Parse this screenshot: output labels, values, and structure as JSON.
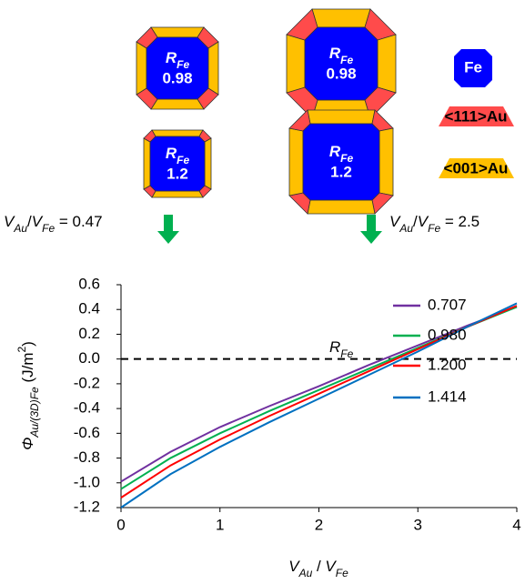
{
  "diagram": {
    "shapes": [
      {
        "symbol": "R",
        "sub": "Fe",
        "value": "0.98"
      },
      {
        "symbol": "R",
        "sub": "Fe",
        "value": "0.98"
      },
      {
        "symbol": "R",
        "sub": "Fe",
        "value": "1.2"
      },
      {
        "symbol": "R",
        "sub": "Fe",
        "value": "1.2"
      }
    ],
    "key": [
      "Fe",
      "<111>Au",
      "<001>Au"
    ],
    "annotations": [
      {
        "v1": "V",
        "s1": "Au",
        "slash": "/",
        "v2": "V",
        "s2": "Fe",
        "rest": " = 0.47"
      },
      {
        "v1": "V",
        "s1": "Au",
        "slash": "/",
        "v2": "V",
        "s2": "Fe",
        "rest": " = 2.5"
      }
    ]
  },
  "chart_data": {
    "type": "line",
    "x_label": {
      "v1": "V",
      "s1": "Au",
      "slash": " / ",
      "v2": "V",
      "s2": "Fe"
    },
    "y_label": {
      "sym": "Φ",
      "sub": "Au/(3D)Fe",
      "unit": " (J/m",
      "sup": "2",
      "close": ")"
    },
    "legend_title": {
      "symbol": "R",
      "sub": "Fe"
    },
    "x": [
      0,
      0.5,
      1,
      1.5,
      2,
      2.5,
      3,
      3.5,
      4
    ],
    "series": [
      {
        "name": "0.707",
        "color": "#7030a0",
        "values": [
          -0.99,
          -0.75,
          -0.55,
          -0.38,
          -0.22,
          -0.05,
          0.11,
          0.27,
          0.42
        ]
      },
      {
        "name": "0.980",
        "color": "#00b050",
        "values": [
          -1.05,
          -0.8,
          -0.6,
          -0.42,
          -0.25,
          -0.08,
          0.09,
          0.26,
          0.42
        ]
      },
      {
        "name": "1.200",
        "color": "#ff0000",
        "values": [
          -1.12,
          -0.86,
          -0.65,
          -0.46,
          -0.28,
          -0.1,
          0.08,
          0.26,
          0.43
        ]
      },
      {
        "name": "1.414",
        "color": "#0070c0",
        "values": [
          -1.2,
          -0.93,
          -0.71,
          -0.51,
          -0.32,
          -0.13,
          0.06,
          0.26,
          0.45
        ]
      }
    ],
    "xlim": [
      0,
      4
    ],
    "xticks": [
      0,
      1,
      2,
      3,
      4
    ],
    "ylim": [
      -1.2,
      0.6
    ],
    "yticks": [
      0.6,
      0.4,
      0.2,
      {
        "value": 0,
        "label": "0.0"
      },
      -0.2,
      -0.4,
      -0.6,
      -0.8,
      {
        "value": -1,
        "label": "-1.0"
      },
      -1.2
    ],
    "hline": 0
  }
}
